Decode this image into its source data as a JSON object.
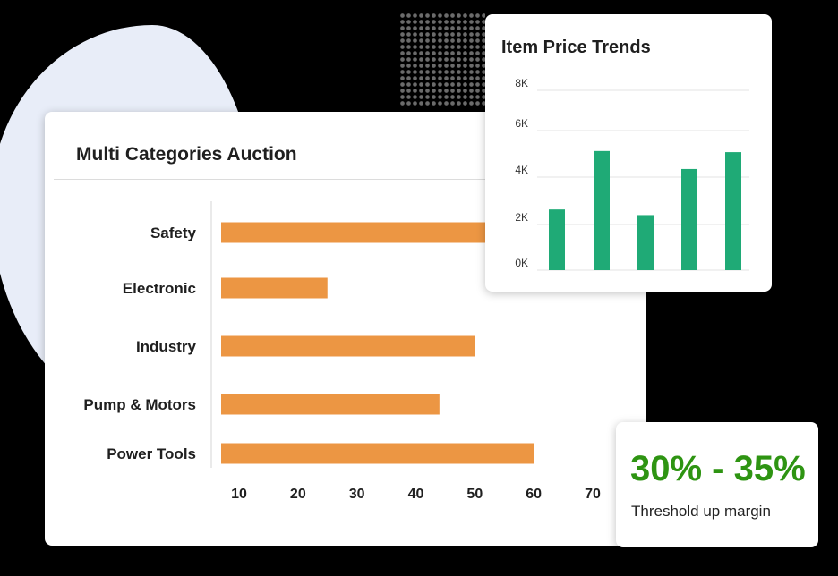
{
  "colors": {
    "bar_orange": "#ec9643",
    "bar_green": "#1faa76",
    "threshold_green": "#2e9412",
    "blob": "#e8edf8"
  },
  "chart_data": [
    {
      "type": "bar",
      "orientation": "horizontal",
      "title": "Multi Categories Auction",
      "categories": [
        "Safety",
        "Electronic",
        "Industry",
        "Pump & Motors",
        "Power Tools"
      ],
      "values": [
        55,
        25,
        50,
        44,
        60
      ],
      "xticks": [
        "10",
        "20",
        "30",
        "40",
        "50",
        "60",
        "70"
      ],
      "xlim": [
        8,
        70
      ],
      "grid": false
    },
    {
      "type": "bar",
      "title": "Item Price Trends",
      "values": [
        2700,
        5300,
        2450,
        4500,
        5250
      ],
      "yticks": [
        "0K",
        "2K",
        "4K",
        "6K",
        "8K"
      ],
      "ylim": [
        0,
        8000
      ],
      "grid": true
    }
  ],
  "threshold": {
    "range": "30% - 35%",
    "label": "Threshold up margin"
  }
}
